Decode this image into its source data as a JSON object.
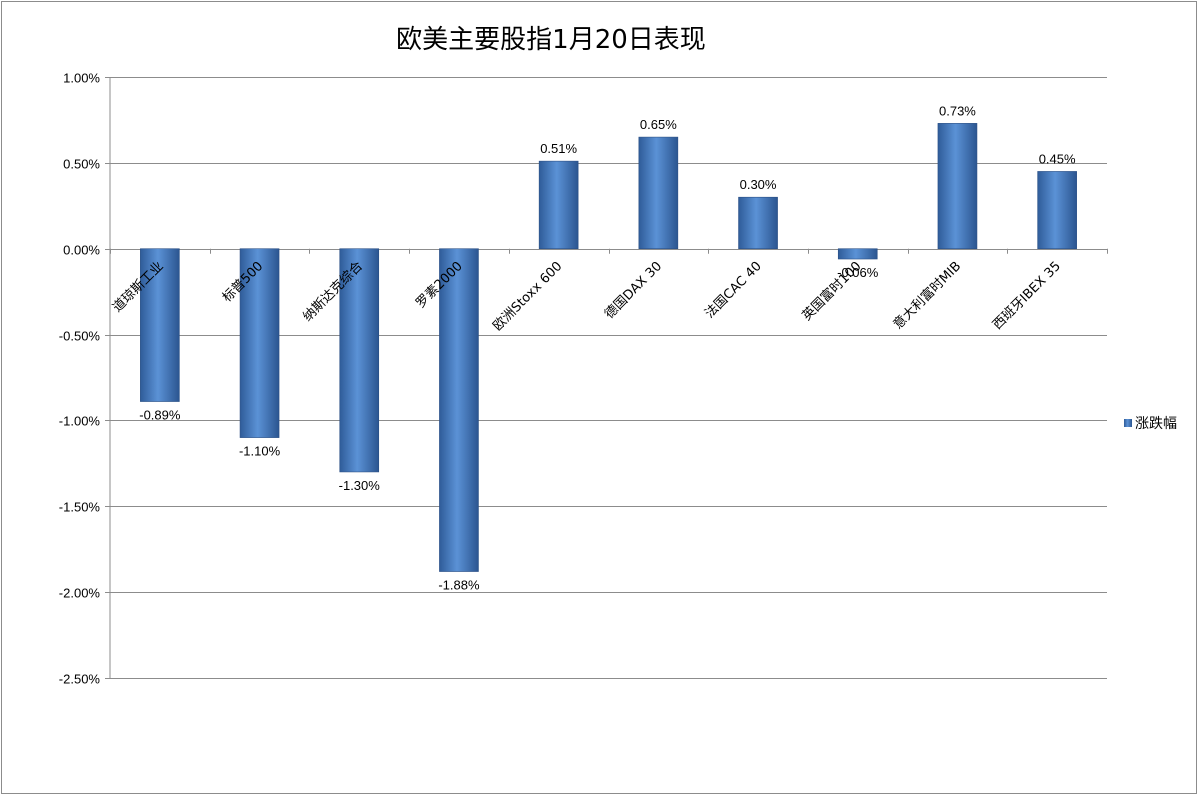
{
  "chart_data": {
    "type": "bar",
    "title": "欧美主要股指1月20日表现",
    "categories": [
      "道琼斯工业",
      "标普500",
      "纳斯达克综合",
      "罗素2000",
      "欧洲Stoxx 600",
      "德国DAX 30",
      "法国CAC 40",
      "英国富时100",
      "意大利富时MIB",
      "西班牙IBEX 35"
    ],
    "series": [
      {
        "name": "涨跌幅",
        "values": [
          -0.89,
          -1.1,
          -1.3,
          -1.88,
          0.51,
          0.65,
          0.3,
          -0.06,
          0.73,
          0.45
        ]
      }
    ],
    "data_labels": [
      "-0.89%",
      "-1.10%",
      "-1.30%",
      "-1.88%",
      "0.51%",
      "0.65%",
      "0.30%",
      "-0.06%",
      "0.73%",
      "0.45%"
    ],
    "ytick_labels": [
      "1.00%",
      "0.50%",
      "0.00%",
      "-0.50%",
      "-1.00%",
      "-1.50%",
      "-2.00%",
      "-2.50%"
    ],
    "ylim": [
      -2.5,
      1.0
    ],
    "ystep": 0.5,
    "xlabel": "",
    "ylabel": "",
    "grid": true,
    "legend_position": "right",
    "bar_color": "#4a7ebb"
  }
}
